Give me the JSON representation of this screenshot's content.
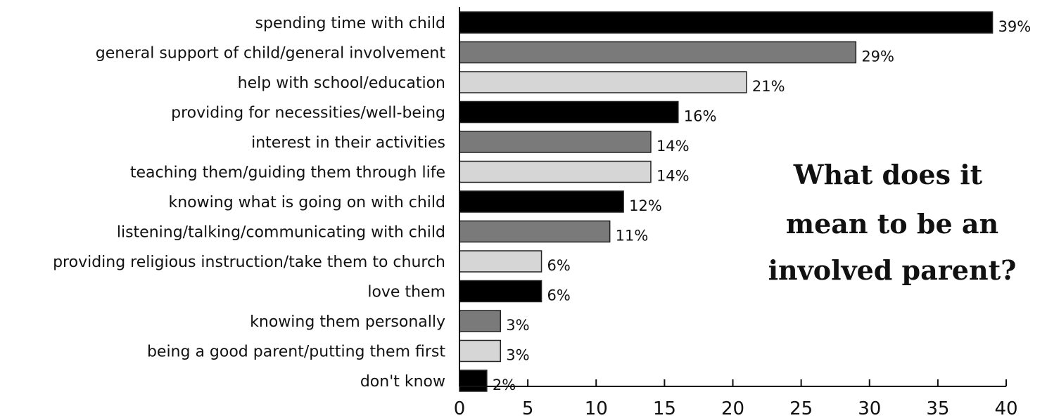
{
  "chart_data": {
    "type": "bar",
    "orientation": "horizontal",
    "title_lines": [
      "What does it",
      "mean to be an",
      "involved parent?"
    ],
    "categories": [
      "spending time with child",
      "general support of child/general involvement",
      "help with school/education",
      "providing for necessities/well-being",
      "interest in their activities",
      "teaching them/guiding them through life",
      "knowing what is going on with child",
      "listening/talking/communicating with child",
      "providing religious instruction/take them to church",
      "love them",
      "knowing them personally",
      "being a good parent/putting them first",
      "don't know"
    ],
    "values": [
      39,
      29,
      21,
      16,
      14,
      14,
      12,
      11,
      6,
      6,
      3,
      3,
      2
    ],
    "value_labels": [
      "39%",
      "29%",
      "21%",
      "16%",
      "14%",
      "14%",
      "12%",
      "11%",
      "6%",
      "6%",
      "3%",
      "3%",
      "2%"
    ],
    "xlim": [
      0,
      40
    ],
    "xticks": [
      0,
      5,
      10,
      15,
      20,
      25,
      30,
      35,
      40
    ],
    "xtick_labels": [
      "0",
      "5",
      "10",
      "15",
      "20",
      "25",
      "30",
      "35",
      "40"
    ],
    "bar_colors": [
      "#000000",
      "#7a7a7a",
      "#d6d6d6"
    ],
    "bar_outline": "#222222",
    "grid": false,
    "legend": "none",
    "xlabel": "",
    "ylabel": ""
  }
}
